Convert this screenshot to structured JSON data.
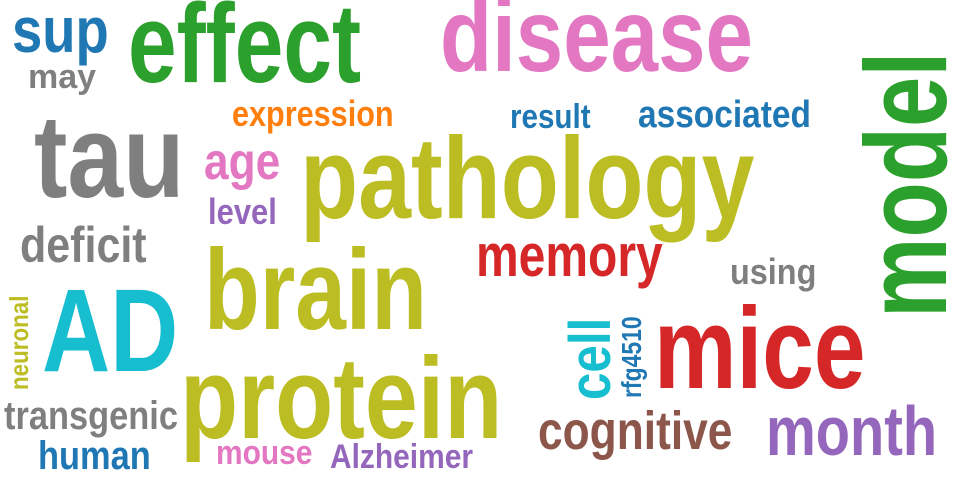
{
  "colors": {
    "blue": "#1f77b4",
    "gray": "#7f7f7f",
    "green": "#2ca02c",
    "pink": "#e377c2",
    "orange": "#ff7f0e",
    "olive": "#bcbd22",
    "purple": "#9467bd",
    "red": "#d62728",
    "cyan": "#17becf",
    "brown": "#8c564b"
  },
  "words": {
    "sup": "sup",
    "may": "may",
    "effect": "effect",
    "disease": "disease",
    "model": "model",
    "expression": "expression",
    "result": "result",
    "associated": "associated",
    "tau": "tau",
    "age": "age",
    "pathology": "pathology",
    "level": "level",
    "deficit": "deficit",
    "memory": "memory",
    "using": "using",
    "brain": "brain",
    "neuronal": "neuronal",
    "ad": "AD",
    "cell": "cell",
    "rs": "rfg4510",
    "mice": "mice",
    "protein": "protein",
    "transgenic": "transgenic",
    "human": "human",
    "mouse": "mouse",
    "alzheimer": "Alzheimer",
    "cognitive": "cognitive",
    "month": "month"
  }
}
